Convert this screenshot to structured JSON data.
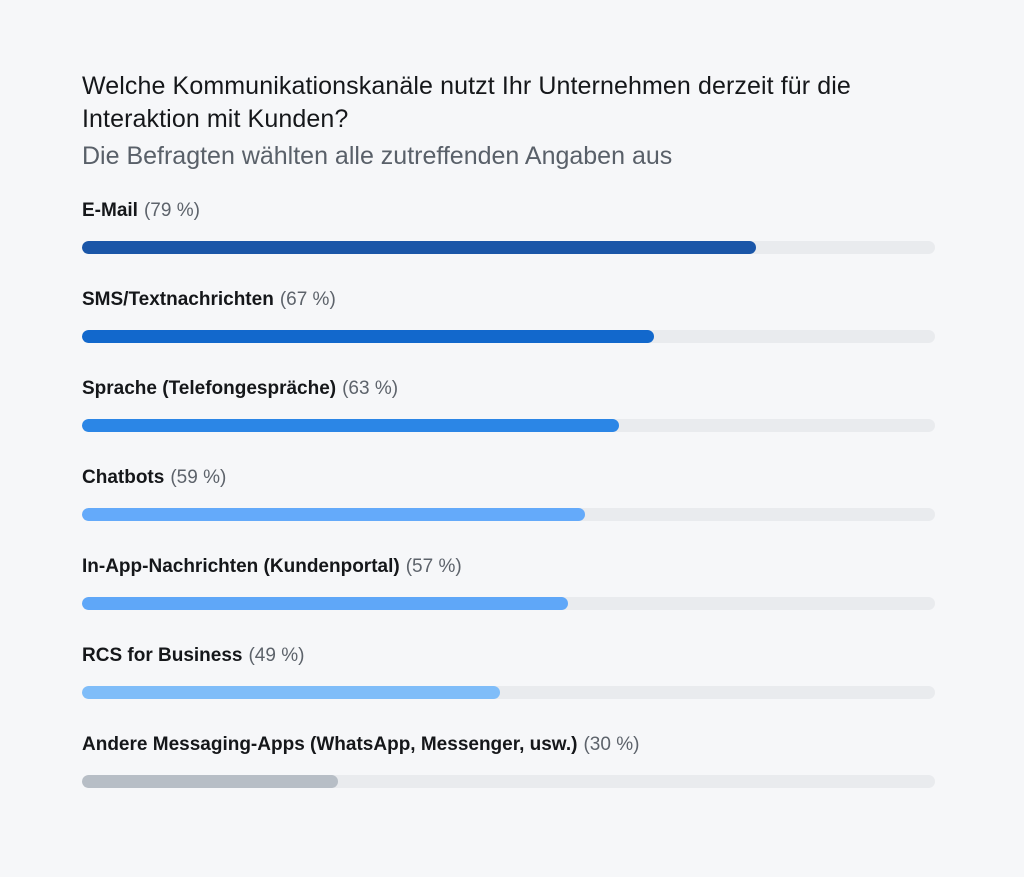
{
  "chart_data": {
    "type": "bar",
    "orientation": "horizontal",
    "title": "Welche Kommunikationskanäle nutzt Ihr Unternehmen derzeit für die Interaktion mit Kunden?",
    "subtitle": "Die Befragten wählten alle zutreffenden Angaben aus",
    "xlim": [
      0,
      100
    ],
    "grid": false,
    "categories": [
      "E-Mail",
      "SMS/Textnachrichten",
      "Sprache (Telefongespräche)",
      "Chatbots",
      "In-App-Nachrichten (Kundenportal)",
      "RCS for Business",
      "Andere Messaging-Apps (WhatsApp, Messenger, usw.)"
    ],
    "values": [
      79,
      67,
      63,
      59,
      57,
      49,
      30
    ],
    "value_labels": [
      "(79 %)",
      "(67 %)",
      "(63 %)",
      "(59 %)",
      "(57 %)",
      "(49 %)",
      "(30 %)"
    ],
    "colors": [
      "#1a56a8",
      "#1268cc",
      "#2b86e6",
      "#64aafa",
      "#5fa7f8",
      "#7fbdf9",
      "#b7bec6"
    ],
    "track_color": "#e9ebee"
  }
}
